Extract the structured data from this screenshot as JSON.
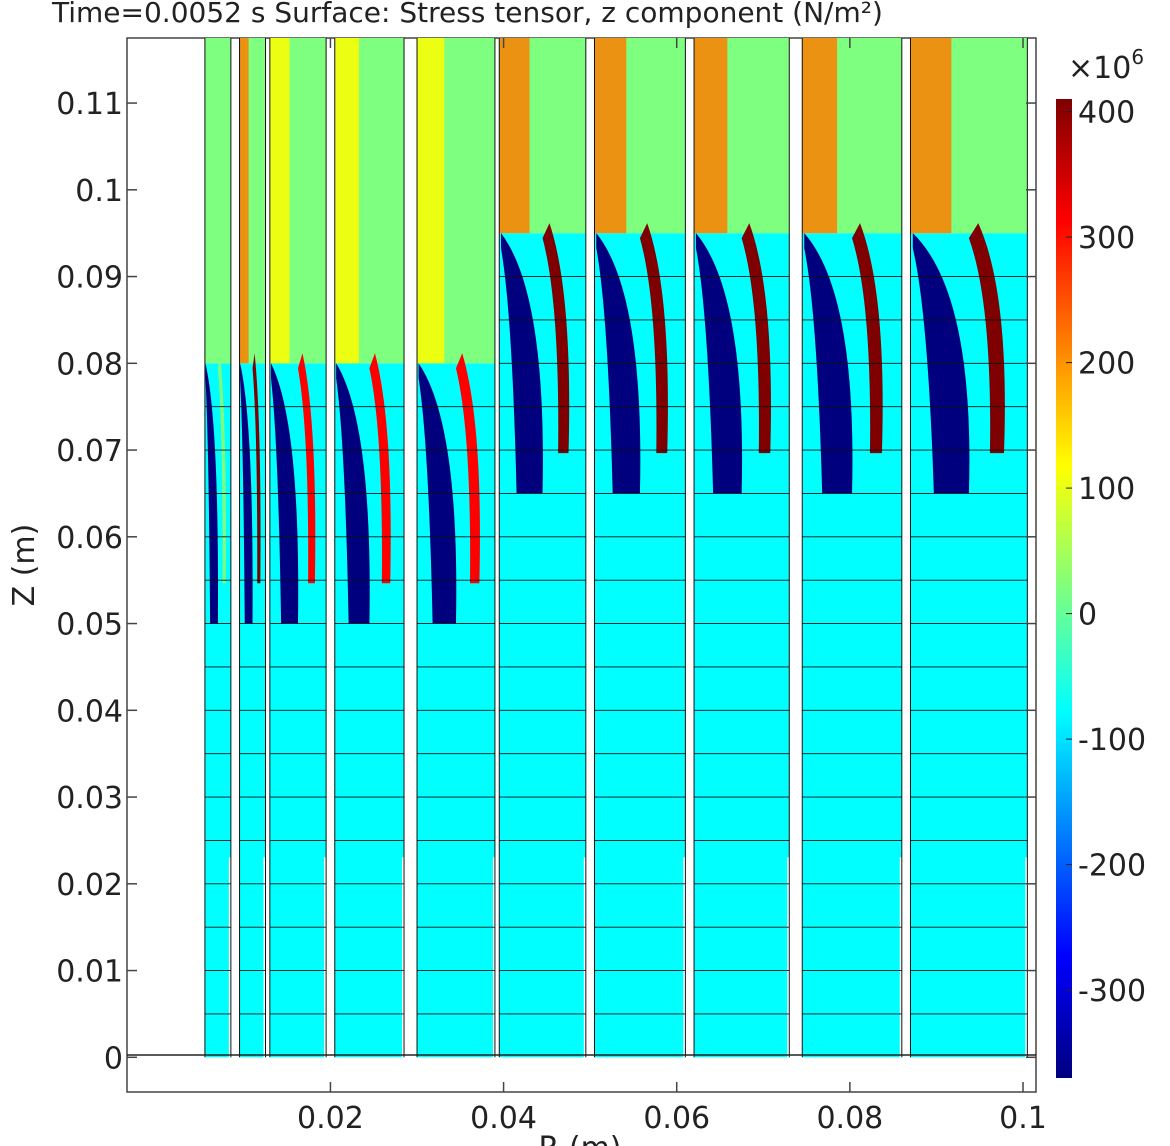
{
  "title": "Time=0.0052 s   Surface: Stress tensor, z component (N/m²)",
  "chart_data": {
    "type": "heatmap",
    "title": "Time=0.0052 s   Surface: Stress tensor, z component (N/m²)",
    "time": "0.0052 s",
    "quantity": "Stress tensor, z component",
    "unit": "N/m²",
    "xlabel": "R (m)",
    "ylabel": "Z (m)",
    "xlim": [
      -0.0035,
      0.1015
    ],
    "ylim": [
      -0.004,
      0.1175
    ],
    "xticks": [
      0.02,
      0.04,
      0.06,
      0.08,
      0.1
    ],
    "xtick_labels": [
      "0.02",
      "0.04",
      "0.06",
      "0.08",
      "0.1"
    ],
    "yticks": [
      0,
      0.01,
      0.02,
      0.03,
      0.04,
      0.05,
      0.06,
      0.07,
      0.08,
      0.09,
      0.1,
      0.11
    ],
    "ytick_labels": [
      "0",
      "0.01",
      "0.02",
      "0.03",
      "0.04",
      "0.05",
      "0.06",
      "0.07",
      "0.08",
      "0.09",
      "0.1",
      "0.11"
    ],
    "colorbar": {
      "multiplier_label": "×10",
      "multiplier_exponent": "6",
      "min": -370,
      "max": 410,
      "ticks": [
        400,
        300,
        200,
        100,
        0,
        -100,
        -200,
        -300
      ],
      "tick_labels": [
        "400",
        "300",
        "200",
        "100",
        "0",
        "-100",
        "-200",
        "-300"
      ],
      "colormap": [
        "#00007f",
        "#0000ff",
        "#007fff",
        "#00ffff",
        "#7fff7f",
        "#ffff00",
        "#ff7f00",
        "#ff0000",
        "#7f0000"
      ]
    },
    "tubes": [
      {
        "r0": 0.0055,
        "r1": 0.0085,
        "peak": 20,
        "front": 0.08
      },
      {
        "r0": 0.0095,
        "r1": 0.0125,
        "peak": 380,
        "front": 0.08
      },
      {
        "r0": 0.013,
        "r1": 0.0195,
        "peak": 330,
        "front": 0.08
      },
      {
        "r0": 0.0205,
        "r1": 0.0285,
        "peak": 340,
        "front": 0.08
      },
      {
        "r0": 0.03,
        "r1": 0.039,
        "peak": 300,
        "front": 0.08
      },
      {
        "r0": 0.0395,
        "r1": 0.0495,
        "peak": 380,
        "front": 0.095
      },
      {
        "r0": 0.0505,
        "r1": 0.061,
        "peak": 390,
        "front": 0.095
      },
      {
        "r0": 0.062,
        "r1": 0.073,
        "peak": 380,
        "front": 0.095
      },
      {
        "r0": 0.0745,
        "r1": 0.086,
        "peak": 380,
        "front": 0.095
      },
      {
        "r0": 0.087,
        "r1": 0.1005,
        "peak": 400,
        "front": 0.095
      }
    ],
    "ambient_value": -100,
    "upper_value": 0,
    "grid": "mesh boundaries drawn as thin black lines"
  }
}
